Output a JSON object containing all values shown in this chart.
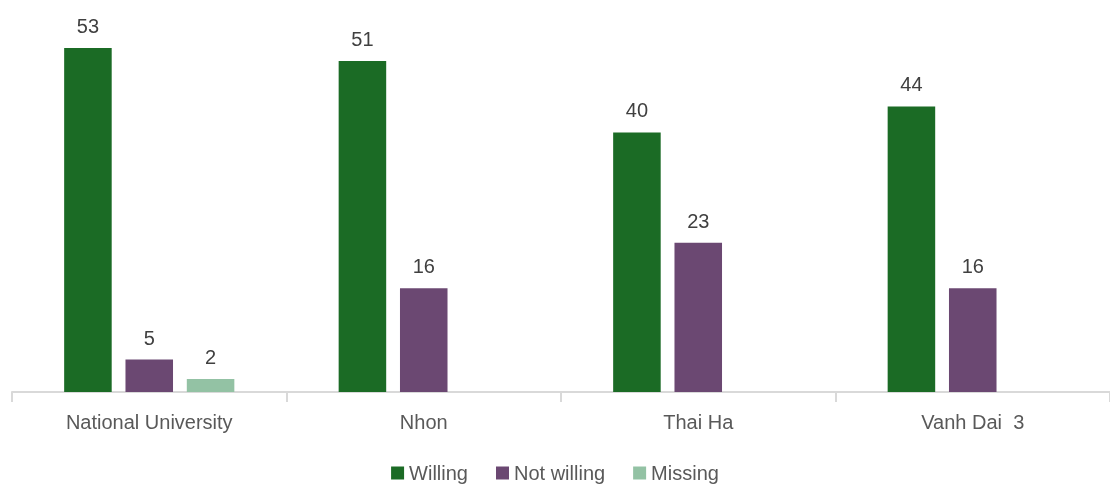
{
  "chart_data": {
    "type": "bar",
    "categories": [
      "National University",
      "Nhon",
      "Thai Ha",
      "Vanh Dai  3"
    ],
    "series": [
      {
        "name": "Willing",
        "color": "#1b6b25",
        "values": [
          53,
          51,
          40,
          44
        ]
      },
      {
        "name": "Not willing",
        "color": "#6b4872",
        "values": [
          5,
          16,
          23,
          16
        ]
      },
      {
        "name": "Missing",
        "color": "#93c2a4",
        "values": [
          2,
          null,
          null,
          null
        ]
      }
    ],
    "data_labels": true,
    "legend": "bottom"
  }
}
